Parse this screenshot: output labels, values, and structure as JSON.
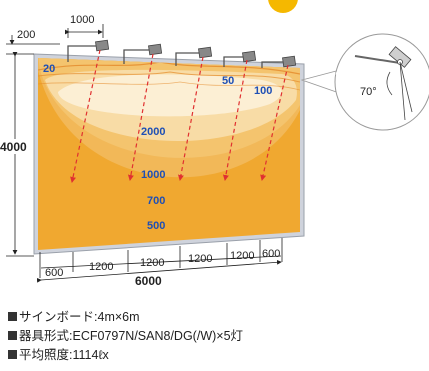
{
  "diagram": {
    "dimensions": {
      "fixture_spacing": "1000",
      "offset": "200",
      "height": "4000",
      "total_width": "6000",
      "segments": [
        "600",
        "1200",
        "1200",
        "1200",
        "1200",
        "600"
      ]
    },
    "angle_label": "70°",
    "isolux_labels": {
      "l20": "20",
      "l50": "50",
      "l100": "100",
      "l2000": "2000",
      "l1000": "1000",
      "l700": "700",
      "l500": "500"
    },
    "colors": {
      "outer": "#f0a830",
      "mid": "#f4c46e",
      "inner": "#f8dca6",
      "core": "#fcefd4",
      "accent": "#f5b800",
      "label_blue": "#1e4fb5",
      "ray_red": "#e03030"
    }
  },
  "specs": [
    {
      "label": "サインボード",
      "value": "4m×6m"
    },
    {
      "label": "器具形式",
      "value": "ECF0797N/SAN8/DG(/W)×5灯"
    },
    {
      "label": "平均照度",
      "value": "1114ℓx"
    }
  ]
}
